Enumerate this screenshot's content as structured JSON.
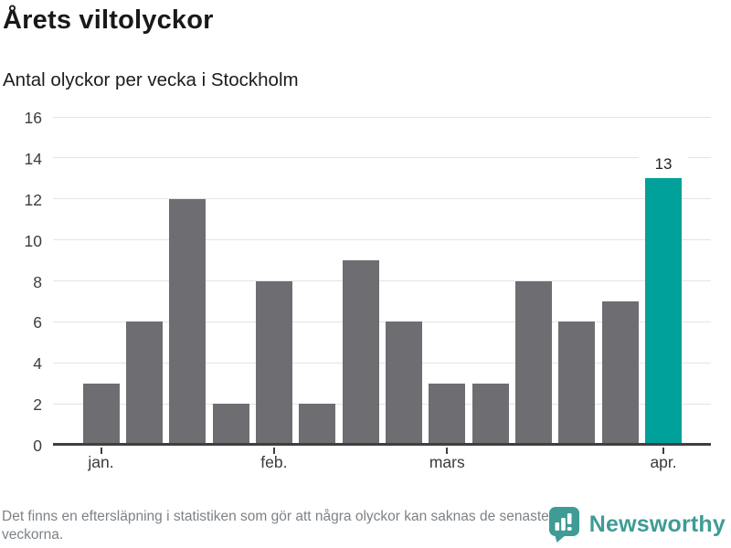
{
  "header": {
    "title": "Årets viltolyckor",
    "subtitle": "Antal olyckor per vecka i Stockholm"
  },
  "chart_data": {
    "type": "bar",
    "title": "Årets viltolyckor",
    "subtitle": "Antal olyckor per vecka i Stockholm",
    "values": [
      3,
      6,
      12,
      2,
      8,
      2,
      9,
      6,
      3,
      3,
      8,
      6,
      7,
      13
    ],
    "x_ticks": [
      {
        "index": 0,
        "label": "jan."
      },
      {
        "index": 4,
        "label": "feb."
      },
      {
        "index": 8,
        "label": "mars"
      },
      {
        "index": 13,
        "label": "apr."
      }
    ],
    "y_ticks": [
      0,
      2,
      4,
      6,
      8,
      10,
      12,
      14,
      16
    ],
    "ylim": [
      0,
      16
    ],
    "grid": true,
    "legend": "none",
    "bar_color": "#6e6d72",
    "highlight_color": "#00a19a",
    "highlight_index": 13,
    "bar_label": {
      "index": 13,
      "text": "13"
    }
  },
  "footer": {
    "note": "Det finns en eftersläpning i statistiken som gör att några olyckor kan saknas de senaste veckorna.",
    "brand": "Newsworthy",
    "brand_color": "#3e9c95"
  }
}
